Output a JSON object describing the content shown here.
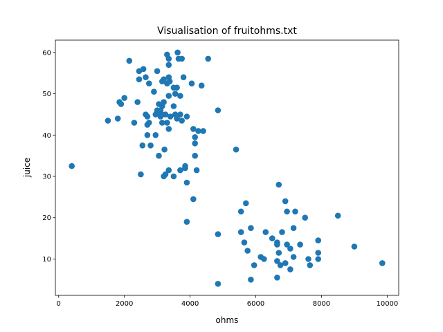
{
  "chart_data": {
    "type": "scatter",
    "title": "Visualisation of fruitohms.txt",
    "xlabel": "ohms",
    "ylabel": "juice",
    "xlim": [
      -100,
      10350
    ],
    "ylim": [
      1.2,
      63.0
    ],
    "xticks": [
      0,
      2000,
      4000,
      6000,
      8000,
      10000
    ],
    "yticks": [
      10,
      20,
      30,
      40,
      50,
      60
    ],
    "marker_color": "#1f77b4",
    "grid": false,
    "points": [
      [
        400,
        32.5
      ],
      [
        1500,
        43.5
      ],
      [
        1800,
        44
      ],
      [
        1850,
        48
      ],
      [
        1900,
        47.5
      ],
      [
        2000,
        49
      ],
      [
        2150,
        58
      ],
      [
        2300,
        43
      ],
      [
        2400,
        48
      ],
      [
        2450,
        53.5
      ],
      [
        2450,
        55.5
      ],
      [
        2500,
        30.5
      ],
      [
        2550,
        37.5
      ],
      [
        2580,
        56
      ],
      [
        2650,
        54
      ],
      [
        2650,
        45
      ],
      [
        2700,
        40
      ],
      [
        2700,
        44.5
      ],
      [
        2700,
        42.5
      ],
      [
        2750,
        43
      ],
      [
        2750,
        52.5
      ],
      [
        2800,
        37.5
      ],
      [
        2900,
        50.5
      ],
      [
        2950,
        45
      ],
      [
        2950,
        40
      ],
      [
        3000,
        55.5
      ],
      [
        3000,
        46
      ],
      [
        3000,
        45.5
      ],
      [
        3050,
        35
      ],
      [
        3050,
        47.5
      ],
      [
        3100,
        44.5
      ],
      [
        3100,
        46
      ],
      [
        3150,
        43
      ],
      [
        3150,
        45
      ],
      [
        3150,
        47
      ],
      [
        3150,
        53
      ],
      [
        3200,
        48
      ],
      [
        3200,
        53.5
      ],
      [
        3200,
        30
      ],
      [
        3220,
        36.5
      ],
      [
        3250,
        30.5
      ],
      [
        3250,
        45
      ],
      [
        3300,
        43
      ],
      [
        3300,
        52.5
      ],
      [
        3300,
        59.5
      ],
      [
        3350,
        57
      ],
      [
        3350,
        54
      ],
      [
        3350,
        49.5
      ],
      [
        3350,
        31.5
      ],
      [
        3350,
        41.5
      ],
      [
        3350,
        58.5
      ],
      [
        3380,
        53
      ],
      [
        3400,
        44.5
      ],
      [
        3500,
        47
      ],
      [
        3500,
        51.5
      ],
      [
        3500,
        30
      ],
      [
        3550,
        45
      ],
      [
        3550,
        50
      ],
      [
        3600,
        44
      ],
      [
        3600,
        51.5
      ],
      [
        3620,
        60
      ],
      [
        3650,
        58.5
      ],
      [
        3700,
        45
      ],
      [
        3700,
        49.5
      ],
      [
        3700,
        31.5
      ],
      [
        3750,
        58.5
      ],
      [
        3750,
        43.5
      ],
      [
        3800,
        54
      ],
      [
        3850,
        32.5
      ],
      [
        3850,
        32
      ],
      [
        3900,
        44.5
      ],
      [
        3900,
        28.5
      ],
      [
        3900,
        19
      ],
      [
        4050,
        52.5
      ],
      [
        4100,
        41.5
      ],
      [
        4100,
        24.5
      ],
      [
        4150,
        39.5
      ],
      [
        4150,
        38
      ],
      [
        4150,
        35
      ],
      [
        4200,
        31.5
      ],
      [
        4250,
        41
      ],
      [
        4350,
        52
      ],
      [
        4400,
        41
      ],
      [
        4550,
        58.5
      ],
      [
        4850,
        46
      ],
      [
        4850,
        16
      ],
      [
        4850,
        4
      ],
      [
        5400,
        36.5
      ],
      [
        5550,
        21.5
      ],
      [
        5550,
        16.5
      ],
      [
        5650,
        14
      ],
      [
        5700,
        23.5
      ],
      [
        5750,
        12
      ],
      [
        5850,
        5
      ],
      [
        5850,
        17.5
      ],
      [
        5950,
        8.5
      ],
      [
        6150,
        10.5
      ],
      [
        6250,
        10
      ],
      [
        6300,
        16.5
      ],
      [
        6500,
        15
      ],
      [
        6650,
        14
      ],
      [
        6650,
        13.5
      ],
      [
        6650,
        9.5
      ],
      [
        6650,
        5.5
      ],
      [
        6700,
        28
      ],
      [
        6700,
        11.5
      ],
      [
        6750,
        8.5
      ],
      [
        6800,
        16.5
      ],
      [
        6900,
        9
      ],
      [
        6900,
        24
      ],
      [
        6950,
        21.5
      ],
      [
        6950,
        13.5
      ],
      [
        7050,
        7.5
      ],
      [
        7050,
        12.5
      ],
      [
        7150,
        10.5
      ],
      [
        7150,
        17.5
      ],
      [
        7200,
        21.5
      ],
      [
        7350,
        13.5
      ],
      [
        7500,
        20
      ],
      [
        7600,
        10
      ],
      [
        7650,
        8.5
      ],
      [
        7900,
        14.5
      ],
      [
        7900,
        11.5
      ],
      [
        7900,
        10
      ],
      [
        8500,
        20.5
      ],
      [
        9000,
        13
      ],
      [
        9850,
        9
      ]
    ]
  }
}
